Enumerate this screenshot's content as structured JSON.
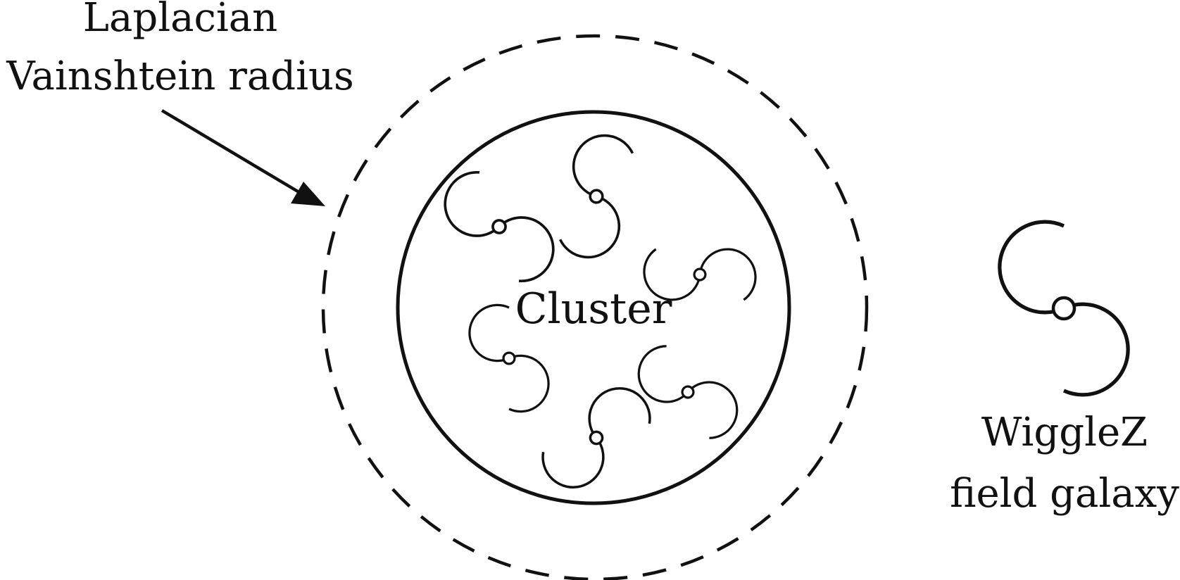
{
  "labels": {
    "vainshtein_line1": "Laplacian",
    "vainshtein_line2": "Vainshtein radius",
    "cluster": "Cluster",
    "field_line1": "WiggleZ",
    "field_line2": "field galaxy"
  },
  "colors": {
    "ink": "#111111",
    "background": "#ffffff"
  },
  "icons": {
    "galaxy": "spiral-galaxy-icon",
    "arrow": "pointer-arrow"
  }
}
